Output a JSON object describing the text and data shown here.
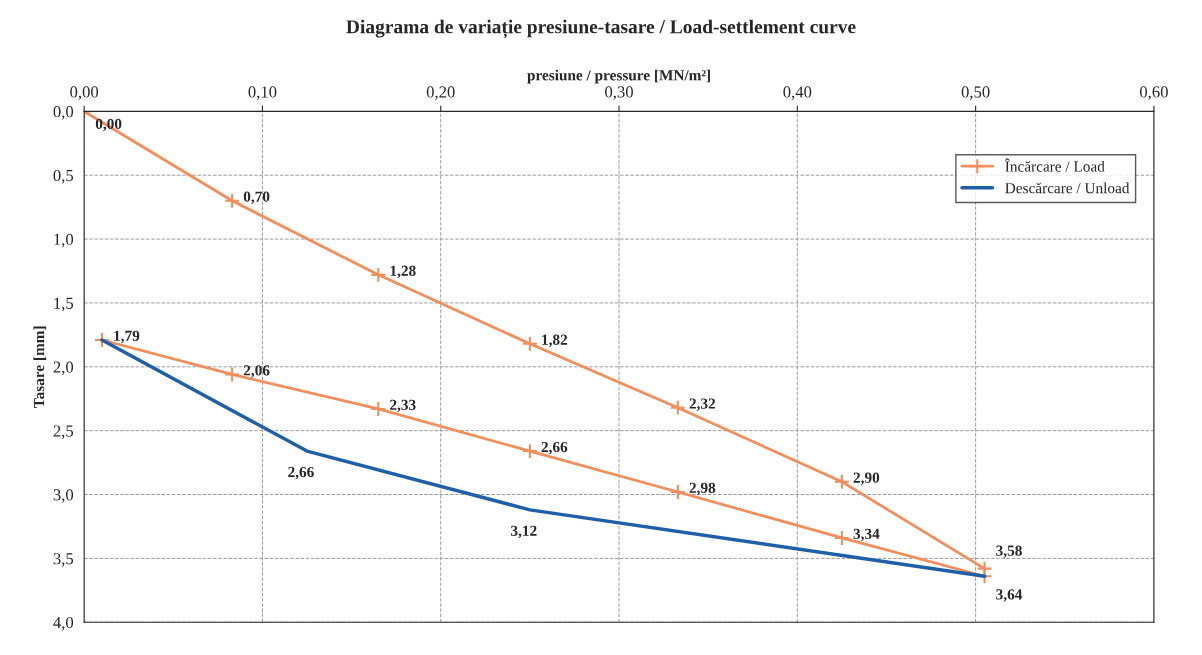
{
  "chart_data": {
    "type": "line",
    "title": "Diagrama de variație presiune-tasare / Load-settlement curve",
    "xlabel": "presiune / pressure [MN/m²]",
    "ylabel": "Tasare [mm]",
    "xlim": [
      0,
      0.6
    ],
    "ylim": [
      4.0,
      0.0
    ],
    "xticks": [
      {
        "value": 0,
        "label": "0,00"
      },
      {
        "value": 0.1,
        "label": "0,10"
      },
      {
        "value": 0.2,
        "label": "0,20"
      },
      {
        "value": 0.3,
        "label": "0,30"
      },
      {
        "value": 0.4,
        "label": "0,40"
      },
      {
        "value": 0.5,
        "label": "0,50"
      },
      {
        "value": 0.6,
        "label": "0,60"
      }
    ],
    "yticks": [
      {
        "value": 0,
        "label": "0,0"
      },
      {
        "value": 0.5,
        "label": "0,5"
      },
      {
        "value": 1,
        "label": "1,0"
      },
      {
        "value": 1.5,
        "label": "1,5"
      },
      {
        "value": 2,
        "label": "2,0"
      },
      {
        "value": 2.5,
        "label": "2,5"
      },
      {
        "value": 3,
        "label": "3,0"
      },
      {
        "value": 3.5,
        "label": "3,5"
      },
      {
        "value": 4,
        "label": "4,0"
      }
    ],
    "grid": true,
    "legend": "top right",
    "line_style": "solid",
    "series": [
      {
        "name": "Încărcare / Load",
        "color": "#f28e5c",
        "marker": "cross",
        "x": [
          0,
          0.083,
          0.165,
          0.25,
          0.333,
          0.425,
          0.505
        ],
        "values": [
          0,
          0.7,
          1.28,
          1.82,
          2.32,
          2.9,
          3.58
        ],
        "value_labels": [
          "0,00",
          "0,70",
          "1,28",
          "1,82",
          "2,32",
          "2,90",
          "3,58"
        ]
      },
      {
        "color": "#f28e5c",
        "marker": "cross",
        "x": [
          0.01,
          0.083,
          0.165,
          0.25,
          0.333,
          0.425,
          0.505
        ],
        "values": [
          1.79,
          2.06,
          2.33,
          2.66,
          2.98,
          3.34,
          3.64
        ],
        "value_labels": [
          "1,79",
          "2,06",
          "2,33",
          "2,66",
          "2,98",
          "3,34",
          "3,64"
        ]
      },
      {
        "name": "Descărcare / Unload",
        "color": "#1f5fa8",
        "marker": "none",
        "x": [
          0.505,
          0.25,
          0.125,
          0.01
        ],
        "values": [
          3.64,
          3.12,
          2.66,
          1.79
        ],
        "value_labels": [
          null,
          "3,12",
          "2,66",
          null
        ]
      }
    ]
  }
}
